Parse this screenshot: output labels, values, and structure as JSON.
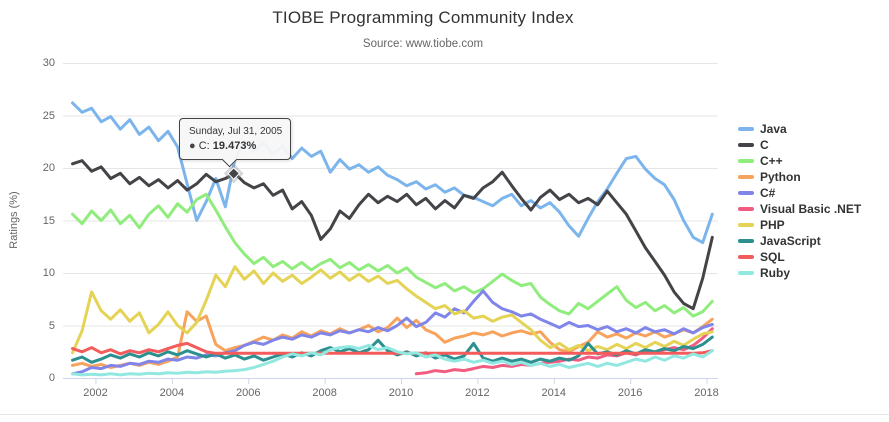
{
  "header": {
    "title": "TIOBE Programming Community Index",
    "subtitle": "Source: www.tiobe.com"
  },
  "y_axis": {
    "title": "Ratings (%)",
    "min": 0,
    "max": 30,
    "ticks": [
      0,
      5,
      10,
      15,
      20,
      25,
      30
    ]
  },
  "x_axis": {
    "min": 2001.15,
    "max": 2018.3,
    "ticks": [
      2002,
      2004,
      2006,
      2008,
      2010,
      2012,
      2014,
      2016,
      2018
    ]
  },
  "tooltip": {
    "date": "Sunday, Jul 31, 2005",
    "series_name": "C",
    "value": "19.473%",
    "point_x": 2005.62,
    "point_y": 19.473,
    "border_color": "#434348"
  },
  "chart_data": {
    "type": "line",
    "title": "TIOBE Programming Community Index",
    "subtitle": "Source: www.tiobe.com",
    "xlabel": "",
    "ylabel": "Ratings (%)",
    "ylim": [
      0,
      30
    ],
    "grid": true,
    "legend_position": "right",
    "x_start": 2001.4,
    "x_step": 0.25,
    "series": [
      {
        "name": "Java",
        "color": "#7cb5ec",
        "values": [
          26.2,
          25.3,
          25.7,
          24.4,
          24.9,
          23.7,
          24.6,
          23.2,
          23.9,
          22.6,
          23.5,
          22.0,
          18.5,
          15.0,
          16.8,
          19.0,
          16.3,
          20.8,
          22.6,
          21.6,
          22.4,
          21.3,
          22.1,
          20.9,
          21.9,
          21.1,
          21.6,
          19.6,
          20.8,
          19.9,
          20.3,
          19.6,
          20.1,
          19.3,
          18.9,
          18.3,
          18.7,
          18.0,
          18.4,
          17.7,
          18.1,
          17.4,
          17.2,
          16.8,
          16.4,
          17.1,
          17.5,
          16.4,
          16.9,
          16.2,
          16.7,
          15.8,
          14.5,
          13.5,
          15.2,
          16.8,
          18.0,
          19.5,
          20.9,
          21.1,
          19.9,
          19.0,
          18.4,
          17.0,
          15.0,
          13.4,
          12.9,
          15.6
        ]
      },
      {
        "name": "C",
        "color": "#434348",
        "values": [
          20.4,
          20.7,
          19.7,
          20.1,
          19.0,
          19.5,
          18.5,
          19.1,
          18.3,
          18.9,
          18.1,
          18.8,
          17.9,
          18.5,
          19.4,
          18.7,
          19.0,
          19.473,
          18.6,
          18.1,
          18.5,
          17.4,
          17.9,
          16.1,
          16.8,
          15.5,
          13.2,
          14.2,
          15.9,
          15.2,
          16.5,
          17.5,
          16.7,
          17.3,
          16.8,
          17.5,
          16.5,
          17.1,
          16.1,
          16.9,
          16.2,
          17.4,
          17.1,
          18.1,
          18.7,
          19.6,
          18.3,
          17.1,
          16.0,
          17.2,
          17.9,
          17.0,
          17.5,
          16.7,
          17.1,
          16.5,
          17.8,
          16.7,
          15.6,
          14.0,
          12.4,
          11.1,
          9.8,
          8.2,
          7.1,
          6.6,
          9.5,
          13.4
        ]
      },
      {
        "name": "C++",
        "color": "#90ed7d",
        "values": [
          15.6,
          14.7,
          15.9,
          15.0,
          16.0,
          14.7,
          15.5,
          14.3,
          15.6,
          16.4,
          15.3,
          16.6,
          15.8,
          17.0,
          17.5,
          16.0,
          14.4,
          12.9,
          11.8,
          10.9,
          11.5,
          10.6,
          11.1,
          10.4,
          11.0,
          10.3,
          10.9,
          11.3,
          10.5,
          11.0,
          10.3,
          10.8,
          10.2,
          10.7,
          10.0,
          10.5,
          9.6,
          9.1,
          8.6,
          9.0,
          8.3,
          8.7,
          8.1,
          8.5,
          9.2,
          9.9,
          9.3,
          8.8,
          9.0,
          7.7,
          7.0,
          6.4,
          6.1,
          7.1,
          6.6,
          7.3,
          8.0,
          8.7,
          7.4,
          6.7,
          7.2,
          6.4,
          6.9,
          6.2,
          6.7,
          5.9,
          6.3,
          7.3
        ]
      },
      {
        "name": "Python",
        "color": "#f7a35c",
        "values": [
          1.2,
          1.4,
          1.1,
          1.3,
          1.0,
          1.2,
          1.4,
          1.2,
          1.5,
          1.3,
          1.6,
          2.0,
          6.3,
          5.4,
          5.9,
          3.2,
          2.6,
          2.9,
          3.1,
          3.5,
          3.9,
          3.6,
          4.1,
          3.8,
          4.4,
          4.0,
          4.5,
          4.2,
          4.7,
          4.3,
          4.6,
          5.0,
          4.4,
          4.8,
          5.7,
          4.8,
          5.5,
          4.6,
          4.2,
          3.4,
          3.8,
          4.0,
          4.3,
          4.1,
          4.4,
          4.0,
          4.3,
          4.5,
          4.2,
          4.4,
          3.4,
          2.7,
          2.5,
          3.0,
          3.4,
          4.4,
          3.9,
          4.2,
          3.8,
          4.3,
          4.0,
          4.4,
          3.9,
          4.2,
          4.6,
          4.3,
          4.9,
          5.6
        ]
      },
      {
        "name": "C#",
        "color": "#8085e9",
        "values": [
          0.4,
          0.6,
          1.0,
          0.9,
          1.2,
          1.1,
          1.4,
          1.3,
          1.6,
          1.5,
          1.8,
          1.7,
          2.0,
          1.9,
          2.2,
          2.1,
          2.4,
          2.6,
          3.1,
          3.4,
          3.2,
          3.6,
          3.9,
          3.7,
          4.1,
          3.9,
          4.3,
          4.1,
          4.5,
          4.3,
          4.6,
          4.4,
          4.8,
          4.5,
          5.0,
          5.7,
          4.9,
          5.3,
          6.2,
          5.8,
          6.6,
          6.2,
          7.3,
          8.3,
          7.2,
          6.6,
          6.3,
          5.9,
          6.1,
          5.6,
          5.2,
          4.8,
          5.3,
          4.9,
          5.0,
          4.6,
          4.9,
          4.4,
          4.7,
          4.3,
          4.8,
          4.4,
          4.6,
          4.2,
          4.7,
          4.3,
          4.8,
          5.1
        ]
      },
      {
        "name": "Visual Basic .NET",
        "color": "#f15c80",
        "values": [
          null,
          null,
          null,
          null,
          null,
          null,
          null,
          null,
          null,
          null,
          null,
          null,
          null,
          null,
          null,
          null,
          null,
          null,
          null,
          null,
          null,
          null,
          null,
          null,
          null,
          null,
          null,
          null,
          null,
          null,
          null,
          null,
          null,
          null,
          null,
          null,
          0.4,
          0.5,
          0.7,
          0.6,
          0.8,
          0.7,
          0.9,
          1.1,
          1.0,
          1.2,
          1.1,
          1.3,
          1.2,
          1.4,
          1.5,
          1.6,
          1.8,
          1.7,
          2.0,
          1.9,
          2.2,
          2.1,
          2.4,
          2.2,
          2.6,
          2.4,
          2.7,
          2.9,
          2.7,
          3.1,
          3.8,
          4.7
        ]
      },
      {
        "name": "PHP",
        "color": "#e4d354",
        "values": [
          2.4,
          4.5,
          8.2,
          6.4,
          5.6,
          6.5,
          5.4,
          6.2,
          4.3,
          5.1,
          6.3,
          5.0,
          4.3,
          5.3,
          7.4,
          9.8,
          8.7,
          10.6,
          9.4,
          10.2,
          9.0,
          10.0,
          9.2,
          9.8,
          9.0,
          9.6,
          10.3,
          9.5,
          10.1,
          9.3,
          9.9,
          9.2,
          9.7,
          9.0,
          9.3,
          8.5,
          7.8,
          7.2,
          6.6,
          6.9,
          6.1,
          6.4,
          5.7,
          5.9,
          5.4,
          5.8,
          6.0,
          5.3,
          4.6,
          3.6,
          2.9,
          3.3,
          2.7,
          3.1,
          2.6,
          3.0,
          2.7,
          3.2,
          2.8,
          3.3,
          2.9,
          3.4,
          3.0,
          3.5,
          3.1,
          3.7,
          4.2,
          4.4
        ]
      },
      {
        "name": "JavaScript",
        "color": "#2b908f",
        "values": [
          1.7,
          2.0,
          1.5,
          1.8,
          2.2,
          1.9,
          2.3,
          2.0,
          2.4,
          2.1,
          2.5,
          2.2,
          2.6,
          2.3,
          2.0,
          2.3,
          1.9,
          2.2,
          1.8,
          2.1,
          1.7,
          2.0,
          2.3,
          2.0,
          2.4,
          2.1,
          2.6,
          2.9,
          2.5,
          2.8,
          2.4,
          2.7,
          3.6,
          2.6,
          2.2,
          2.5,
          2.1,
          2.4,
          1.9,
          2.2,
          1.8,
          2.1,
          3.3,
          1.9,
          1.6,
          1.9,
          1.6,
          1.8,
          1.5,
          1.8,
          1.6,
          1.9,
          1.7,
          2.1,
          3.3,
          2.3,
          2.5,
          2.2,
          2.6,
          2.3,
          2.7,
          2.5,
          2.8,
          2.6,
          3.0,
          2.8,
          3.2,
          3.9
        ]
      },
      {
        "name": "SQL",
        "color": "#f45b5b",
        "values": [
          2.8,
          2.5,
          2.9,
          2.4,
          2.7,
          2.3,
          2.6,
          2.4,
          2.7,
          2.5,
          2.8,
          3.1,
          3.3,
          2.9,
          2.5,
          2.35,
          2.35,
          2.35,
          2.35,
          2.35,
          2.35,
          2.35,
          2.35,
          2.35,
          2.35,
          2.35,
          2.35,
          2.35,
          2.35,
          2.35,
          2.35,
          2.35,
          2.35,
          2.35,
          2.35,
          2.35,
          2.35,
          2.35,
          2.35,
          2.35,
          2.35,
          2.35,
          2.35,
          2.35,
          2.35,
          2.35,
          2.35,
          2.35,
          2.35,
          2.35,
          2.35,
          2.35,
          2.35,
          2.35,
          2.35,
          2.35,
          2.35,
          2.35,
          2.35,
          2.35,
          2.35,
          2.35,
          2.35,
          2.35,
          2.35,
          2.35,
          2.4,
          2.6
        ]
      },
      {
        "name": "Ruby",
        "color": "#91e8e1",
        "values": [
          0.4,
          0.3,
          0.35,
          0.3,
          0.4,
          0.3,
          0.4,
          0.35,
          0.45,
          0.4,
          0.5,
          0.45,
          0.55,
          0.5,
          0.6,
          0.55,
          0.65,
          0.7,
          0.8,
          1.0,
          1.3,
          1.6,
          2.0,
          2.3,
          2.1,
          2.4,
          2.2,
          2.7,
          2.9,
          3.0,
          2.8,
          3.1,
          2.7,
          2.9,
          2.5,
          2.3,
          2.4,
          2.0,
          2.2,
          1.8,
          1.6,
          1.8,
          1.5,
          1.7,
          1.4,
          1.6,
          1.3,
          1.5,
          1.2,
          1.4,
          1.1,
          1.3,
          1.0,
          1.2,
          1.4,
          1.1,
          1.4,
          1.2,
          1.5,
          1.8,
          1.6,
          2.0,
          1.7,
          2.1,
          1.9,
          2.3,
          2.0,
          2.6
        ]
      }
    ]
  }
}
